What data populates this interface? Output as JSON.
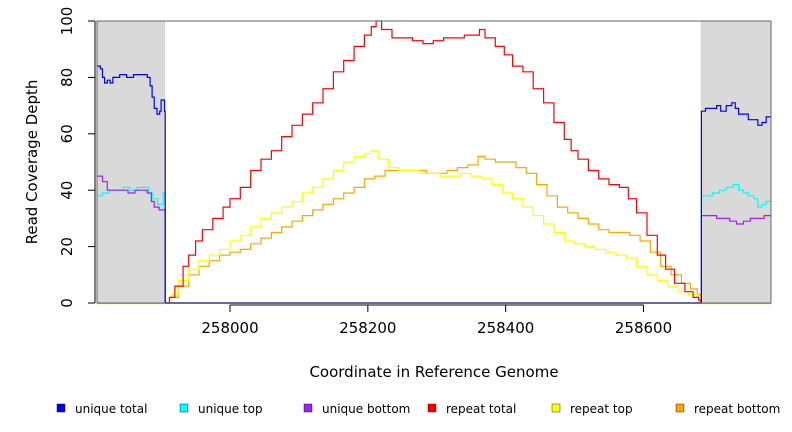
{
  "chart_data": {
    "type": "line",
    "title": "",
    "xlabel": "Coordinate in Reference Genome",
    "ylabel": "Read Coverage Depth",
    "xlim": [
      257807,
      258785
    ],
    "ylim": [
      0,
      100
    ],
    "x_ticks": [
      258000,
      258200,
      258400,
      258600
    ],
    "y_ticks": [
      0,
      20,
      40,
      60,
      80,
      100
    ],
    "x_tick_labels": [
      "258000",
      "258200",
      "258400",
      "258600"
    ],
    "y_tick_labels": [
      "0",
      "20",
      "40",
      "60",
      "80",
      "100"
    ],
    "shaded_regions": [
      [
        257807,
        257906
      ],
      [
        258683,
        258785
      ]
    ],
    "shade_color": "#d9d9d9",
    "legend_position": "bottom",
    "series": [
      {
        "name": "unique total",
        "color": "#0000ff",
        "points": [
          [
            257807,
            84
          ],
          [
            257812,
            83
          ],
          [
            257815,
            80
          ],
          [
            257818,
            78
          ],
          [
            257822,
            79
          ],
          [
            257826,
            78
          ],
          [
            257830,
            80
          ],
          [
            257835,
            80
          ],
          [
            257840,
            81
          ],
          [
            257850,
            80
          ],
          [
            257860,
            81
          ],
          [
            257870,
            81
          ],
          [
            257880,
            80
          ],
          [
            257884,
            77
          ],
          [
            257887,
            73
          ],
          [
            257890,
            69
          ],
          [
            257894,
            67
          ],
          [
            257898,
            68
          ],
          [
            257900,
            72
          ],
          [
            257904,
            72
          ],
          [
            257905,
            68
          ],
          [
            257906,
            0
          ],
          [
            258683,
            0
          ],
          [
            258684,
            68
          ],
          [
            258690,
            69
          ],
          [
            258700,
            69
          ],
          [
            258706,
            70
          ],
          [
            258712,
            68
          ],
          [
            258720,
            70
          ],
          [
            258728,
            71
          ],
          [
            258733,
            69
          ],
          [
            258738,
            67
          ],
          [
            258745,
            67
          ],
          [
            258752,
            65
          ],
          [
            258760,
            65
          ],
          [
            258766,
            63
          ],
          [
            258772,
            64
          ],
          [
            258778,
            66
          ],
          [
            258785,
            66
          ]
        ]
      },
      {
        "name": "unique top",
        "color": "#00ffff",
        "points": [
          [
            257807,
            38
          ],
          [
            257815,
            39
          ],
          [
            257825,
            40
          ],
          [
            257835,
            40
          ],
          [
            257845,
            41
          ],
          [
            257855,
            40
          ],
          [
            257865,
            41
          ],
          [
            257875,
            41
          ],
          [
            257882,
            39
          ],
          [
            257888,
            37
          ],
          [
            257895,
            35
          ],
          [
            257903,
            39
          ],
          [
            257905,
            38
          ],
          [
            257906,
            0
          ],
          [
            258683,
            0
          ],
          [
            258684,
            38
          ],
          [
            258690,
            38
          ],
          [
            258700,
            39
          ],
          [
            258710,
            40
          ],
          [
            258720,
            41
          ],
          [
            258730,
            42
          ],
          [
            258738,
            40
          ],
          [
            258745,
            39
          ],
          [
            258752,
            38
          ],
          [
            258760,
            37
          ],
          [
            258766,
            34
          ],
          [
            258772,
            35
          ],
          [
            258778,
            36
          ],
          [
            258785,
            36
          ]
        ]
      },
      {
        "name": "unique bottom",
        "color": "#a020f0",
        "points": [
          [
            257807,
            45
          ],
          [
            257815,
            43
          ],
          [
            257822,
            40
          ],
          [
            257832,
            40
          ],
          [
            257842,
            40
          ],
          [
            257852,
            39
          ],
          [
            257862,
            40
          ],
          [
            257872,
            40
          ],
          [
            257880,
            39
          ],
          [
            257886,
            36
          ],
          [
            257890,
            34
          ],
          [
            257897,
            33
          ],
          [
            257905,
            33
          ],
          [
            257906,
            0
          ],
          [
            258683,
            0
          ],
          [
            258684,
            31
          ],
          [
            258695,
            31
          ],
          [
            258706,
            30
          ],
          [
            258715,
            30
          ],
          [
            258725,
            29
          ],
          [
            258735,
            28
          ],
          [
            258745,
            29
          ],
          [
            258755,
            30
          ],
          [
            258765,
            30
          ],
          [
            258775,
            31
          ],
          [
            258785,
            31
          ]
        ]
      },
      {
        "name": "repeat total",
        "color": "#ff0000",
        "points": [
          [
            257906,
            0
          ],
          [
            257912,
            2
          ],
          [
            257920,
            6
          ],
          [
            257932,
            13
          ],
          [
            257940,
            17
          ],
          [
            257950,
            22
          ],
          [
            257960,
            26
          ],
          [
            257975,
            30
          ],
          [
            257990,
            34
          ],
          [
            258000,
            37
          ],
          [
            258015,
            41
          ],
          [
            258030,
            47
          ],
          [
            258045,
            51
          ],
          [
            258060,
            54
          ],
          [
            258075,
            59
          ],
          [
            258090,
            63
          ],
          [
            258105,
            67
          ],
          [
            258120,
            71
          ],
          [
            258135,
            76
          ],
          [
            258150,
            82
          ],
          [
            258165,
            86
          ],
          [
            258180,
            91
          ],
          [
            258195,
            95
          ],
          [
            258205,
            98
          ],
          [
            258212,
            100
          ],
          [
            258220,
            97
          ],
          [
            258235,
            94
          ],
          [
            258250,
            94
          ],
          [
            258265,
            93
          ],
          [
            258280,
            92
          ],
          [
            258295,
            93
          ],
          [
            258310,
            94
          ],
          [
            258325,
            94
          ],
          [
            258340,
            95
          ],
          [
            258355,
            95
          ],
          [
            258362,
            97
          ],
          [
            258370,
            94
          ],
          [
            258385,
            91
          ],
          [
            258398,
            88
          ],
          [
            258410,
            84
          ],
          [
            258425,
            82
          ],
          [
            258440,
            76
          ],
          [
            258455,
            71
          ],
          [
            258470,
            64
          ],
          [
            258485,
            58
          ],
          [
            258495,
            54
          ],
          [
            258505,
            51
          ],
          [
            258520,
            47
          ],
          [
            258535,
            44
          ],
          [
            258550,
            42
          ],
          [
            258565,
            41
          ],
          [
            258578,
            37
          ],
          [
            258590,
            32
          ],
          [
            258605,
            24
          ],
          [
            258620,
            17
          ],
          [
            258632,
            12
          ],
          [
            258645,
            7
          ],
          [
            258660,
            4
          ],
          [
            258672,
            2
          ],
          [
            258680,
            1
          ],
          [
            258683,
            0
          ]
        ]
      },
      {
        "name": "repeat top",
        "color": "#ffff00",
        "points": [
          [
            257906,
            0
          ],
          [
            257915,
            3
          ],
          [
            257925,
            8
          ],
          [
            257940,
            12
          ],
          [
            257955,
            15
          ],
          [
            257970,
            17
          ],
          [
            257985,
            19
          ],
          [
            258000,
            22
          ],
          [
            258015,
            24
          ],
          [
            258030,
            27
          ],
          [
            258045,
            30
          ],
          [
            258060,
            32
          ],
          [
            258075,
            34
          ],
          [
            258090,
            36
          ],
          [
            258105,
            39
          ],
          [
            258120,
            41
          ],
          [
            258135,
            44
          ],
          [
            258150,
            47
          ],
          [
            258165,
            50
          ],
          [
            258180,
            52
          ],
          [
            258195,
            53
          ],
          [
            258205,
            54
          ],
          [
            258215,
            51
          ],
          [
            258230,
            48
          ],
          [
            258245,
            47
          ],
          [
            258260,
            47
          ],
          [
            258275,
            46
          ],
          [
            258290,
            46
          ],
          [
            258305,
            45
          ],
          [
            258320,
            45
          ],
          [
            258335,
            46
          ],
          [
            258350,
            45
          ],
          [
            258365,
            44
          ],
          [
            258380,
            42
          ],
          [
            258395,
            39
          ],
          [
            258410,
            37
          ],
          [
            258425,
            34
          ],
          [
            258440,
            31
          ],
          [
            258455,
            28
          ],
          [
            258470,
            25
          ],
          [
            258485,
            22
          ],
          [
            258500,
            21
          ],
          [
            258515,
            20
          ],
          [
            258530,
            19
          ],
          [
            258545,
            18
          ],
          [
            258560,
            17
          ],
          [
            258575,
            16
          ],
          [
            258590,
            13
          ],
          [
            258605,
            10
          ],
          [
            258620,
            8
          ],
          [
            258635,
            6
          ],
          [
            258650,
            4
          ],
          [
            258665,
            3
          ],
          [
            258678,
            2
          ],
          [
            258683,
            0
          ]
        ]
      },
      {
        "name": "repeat bottom",
        "color": "#ffa500",
        "points": [
          [
            257906,
            0
          ],
          [
            257915,
            2
          ],
          [
            257925,
            6
          ],
          [
            257940,
            10
          ],
          [
            257955,
            13
          ],
          [
            257970,
            15
          ],
          [
            257985,
            17
          ],
          [
            258000,
            18
          ],
          [
            258015,
            19
          ],
          [
            258030,
            21
          ],
          [
            258045,
            23
          ],
          [
            258060,
            25
          ],
          [
            258075,
            27
          ],
          [
            258090,
            29
          ],
          [
            258105,
            31
          ],
          [
            258120,
            33
          ],
          [
            258135,
            35
          ],
          [
            258150,
            37
          ],
          [
            258165,
            39
          ],
          [
            258180,
            41
          ],
          [
            258195,
            44
          ],
          [
            258210,
            45
          ],
          [
            258225,
            47
          ],
          [
            258240,
            47
          ],
          [
            258255,
            47
          ],
          [
            258270,
            47
          ],
          [
            258285,
            46
          ],
          [
            258300,
            46
          ],
          [
            258315,
            47
          ],
          [
            258330,
            48
          ],
          [
            258345,
            49
          ],
          [
            258360,
            52
          ],
          [
            258370,
            51
          ],
          [
            258385,
            50
          ],
          [
            258400,
            50
          ],
          [
            258415,
            48
          ],
          [
            258430,
            46
          ],
          [
            258445,
            42
          ],
          [
            258460,
            38
          ],
          [
            258475,
            34
          ],
          [
            258490,
            32
          ],
          [
            258505,
            30
          ],
          [
            258520,
            28
          ],
          [
            258535,
            26
          ],
          [
            258550,
            25
          ],
          [
            258565,
            25
          ],
          [
            258580,
            24
          ],
          [
            258595,
            22
          ],
          [
            258610,
            18
          ],
          [
            258625,
            13
          ],
          [
            258640,
            10
          ],
          [
            258655,
            7
          ],
          [
            258668,
            5
          ],
          [
            258678,
            3
          ],
          [
            258683,
            0
          ]
        ]
      }
    ]
  }
}
